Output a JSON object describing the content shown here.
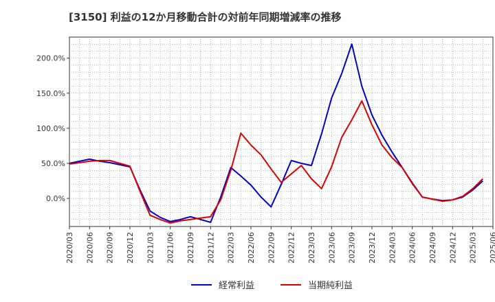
{
  "chart_data": {
    "type": "line",
    "title": "[3150]  利益の12か月移動合計の対前年同期増減率の推移",
    "xlabel": "",
    "ylabel": "",
    "ylim": [
      -40,
      230
    ],
    "y_ticks": [
      0,
      50,
      100,
      150,
      200
    ],
    "y_tick_labels": [
      "0.0%",
      "50.0%",
      "100.0%",
      "150.0%",
      "200.0%"
    ],
    "x_tick_labels": [
      "2020/03",
      "2020/06",
      "2020/09",
      "2020/12",
      "2021/03",
      "2021/06",
      "2021/09",
      "2021/12",
      "2022/03",
      "2022/06",
      "2022/09",
      "2022/12",
      "2023/03",
      "2023/06",
      "2023/09",
      "2023/12",
      "2024/03",
      "2024/06",
      "2024/09",
      "2024/12",
      "2025/03",
      "2025/06"
    ],
    "grid": true,
    "legend_position": "bottom",
    "series": [
      {
        "name": "経常利益",
        "color": "#0000cc",
        "points": [
          [
            0,
            50
          ],
          [
            1,
            53
          ],
          [
            2,
            56
          ],
          [
            3,
            53
          ],
          [
            4,
            51
          ],
          [
            5,
            48
          ],
          [
            6,
            45
          ],
          [
            7,
            12
          ],
          [
            8,
            -18
          ],
          [
            9,
            -27
          ],
          [
            10,
            -33
          ],
          [
            11,
            -30
          ],
          [
            12,
            -26
          ],
          [
            13,
            -30
          ],
          [
            14,
            -34
          ],
          [
            15,
            2
          ],
          [
            16,
            44
          ],
          [
            17,
            32
          ],
          [
            18,
            19
          ],
          [
            19,
            2
          ],
          [
            20,
            -12
          ],
          [
            21,
            20
          ],
          [
            22,
            54
          ],
          [
            23,
            50
          ],
          [
            24,
            47
          ],
          [
            25,
            92
          ],
          [
            26,
            143
          ],
          [
            27,
            178
          ],
          [
            28,
            220
          ],
          [
            29,
            160
          ],
          [
            30,
            119
          ],
          [
            31,
            90
          ],
          [
            32,
            66
          ],
          [
            33,
            44
          ],
          [
            34,
            22
          ],
          [
            35,
            2
          ],
          [
            36,
            -1
          ],
          [
            37,
            -3
          ],
          [
            38,
            -2
          ],
          [
            39,
            2
          ],
          [
            40,
            12
          ],
          [
            41,
            25
          ]
        ]
      },
      {
        "name": "当期純利益",
        "color": "#dd0000",
        "points": [
          [
            0,
            49
          ],
          [
            1,
            51
          ],
          [
            2,
            53
          ],
          [
            3,
            54
          ],
          [
            4,
            54
          ],
          [
            5,
            50
          ],
          [
            6,
            46
          ],
          [
            7,
            10
          ],
          [
            8,
            -24
          ],
          [
            9,
            -30
          ],
          [
            10,
            -35
          ],
          [
            11,
            -32
          ],
          [
            12,
            -30
          ],
          [
            13,
            -28
          ],
          [
            14,
            -26
          ],
          [
            15,
            -2
          ],
          [
            16,
            40
          ],
          [
            17,
            93
          ],
          [
            18,
            76
          ],
          [
            19,
            62
          ],
          [
            20,
            42
          ],
          [
            21,
            23
          ],
          [
            22,
            35
          ],
          [
            23,
            47
          ],
          [
            24,
            28
          ],
          [
            25,
            14
          ],
          [
            26,
            45
          ],
          [
            27,
            87
          ],
          [
            28,
            112
          ],
          [
            29,
            139
          ],
          [
            30,
            105
          ],
          [
            31,
            76
          ],
          [
            32,
            58
          ],
          [
            33,
            44
          ],
          [
            34,
            21
          ],
          [
            35,
            2
          ],
          [
            36,
            -1
          ],
          [
            37,
            -4
          ],
          [
            38,
            -2
          ],
          [
            39,
            3
          ],
          [
            40,
            14
          ],
          [
            41,
            28
          ]
        ]
      }
    ]
  }
}
